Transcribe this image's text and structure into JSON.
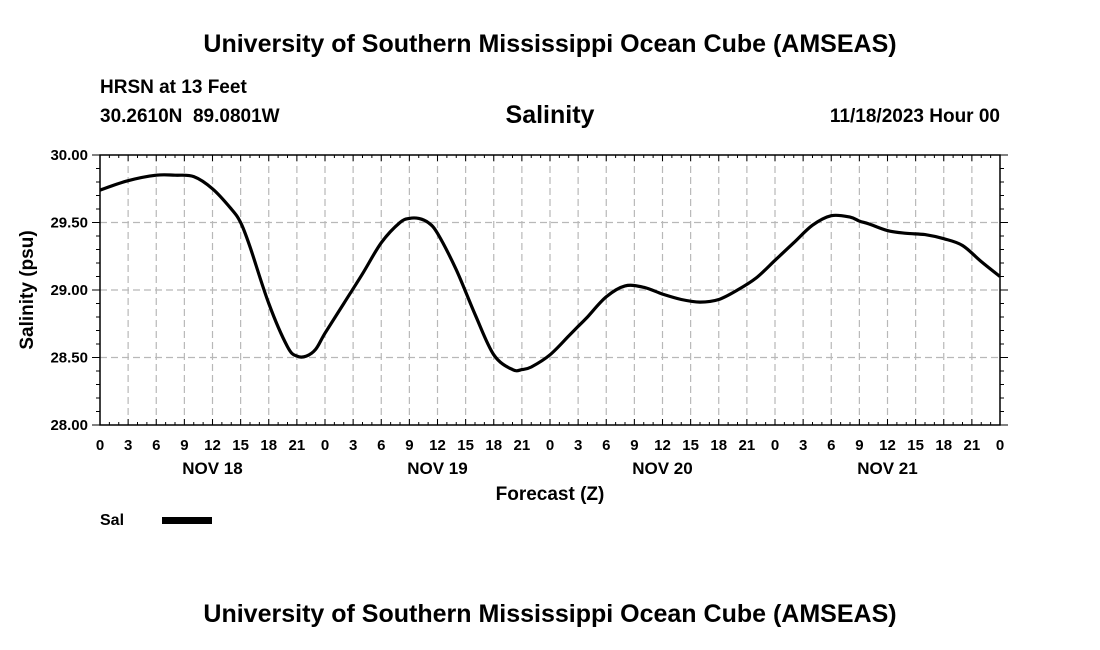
{
  "header": {
    "title_top": "University of Southern Mississippi Ocean Cube (AMSEAS)",
    "station": "HRSN at 13 Feet",
    "coords": "30.2610N  89.0801W",
    "plot_title": "Salinity",
    "run_time": "11/18/2023 Hour 00",
    "title_bottom": "University of Southern Mississippi Ocean Cube (AMSEAS)"
  },
  "chart_data": {
    "type": "line",
    "title": "Salinity",
    "xlabel": "Forecast (Z)",
    "ylabel": "Salinity (psu)",
    "ylim": [
      28.0,
      30.0
    ],
    "xlim": [
      0,
      96
    ],
    "y_ticks": [
      "28.00",
      "28.50",
      "29.00",
      "29.50",
      "30.00"
    ],
    "y_tick_values": [
      28.0,
      28.5,
      29.0,
      29.5,
      30.0
    ],
    "x_tick_hours": [
      0,
      3,
      6,
      9,
      12,
      15,
      18,
      21,
      24,
      27,
      30,
      33,
      36,
      39,
      42,
      45,
      48,
      51,
      54,
      57,
      60,
      63,
      66,
      69,
      72,
      75,
      78,
      81,
      84,
      87,
      90,
      93,
      96
    ],
    "x_tick_labels": [
      "0",
      "3",
      "6",
      "9",
      "12",
      "15",
      "18",
      "21",
      "0",
      "3",
      "6",
      "9",
      "12",
      "15",
      "18",
      "21",
      "0",
      "3",
      "6",
      "9",
      "12",
      "15",
      "18",
      "21",
      "0",
      "3",
      "6",
      "9",
      "12",
      "15",
      "18",
      "21",
      "0"
    ],
    "day_labels": [
      {
        "label": "NOV 18",
        "hour": 12
      },
      {
        "label": "NOV 19",
        "hour": 36
      },
      {
        "label": "NOV 20",
        "hour": 60
      },
      {
        "label": "NOV 21",
        "hour": 84
      }
    ],
    "grid": true,
    "series": [
      {
        "name": "Sal",
        "color": "#000000",
        "x": [
          0,
          3,
          6,
          8,
          10,
          12,
          14,
          15,
          16,
          18,
          20,
          21,
          22,
          23,
          24,
          26,
          28,
          30,
          32,
          33,
          34,
          35,
          36,
          38,
          40,
          42,
          44,
          45,
          46,
          48,
          50,
          51,
          52,
          54,
          56,
          58,
          60,
          62,
          64,
          66,
          68,
          70,
          72,
          74,
          76,
          78,
          80,
          81,
          82,
          84,
          86,
          88,
          90,
          92,
          94,
          96
        ],
        "values": [
          29.74,
          29.81,
          29.85,
          29.85,
          29.84,
          29.75,
          29.6,
          29.5,
          29.32,
          28.9,
          28.58,
          28.51,
          28.51,
          28.56,
          28.68,
          28.9,
          29.12,
          29.35,
          29.5,
          29.53,
          29.53,
          29.5,
          29.42,
          29.15,
          28.82,
          28.52,
          28.41,
          28.41,
          28.43,
          28.52,
          28.66,
          28.73,
          28.8,
          28.95,
          29.03,
          29.02,
          28.97,
          28.93,
          28.91,
          28.93,
          29.0,
          29.09,
          29.22,
          29.35,
          29.48,
          29.55,
          29.54,
          29.51,
          29.49,
          29.44,
          29.42,
          29.41,
          29.38,
          29.33,
          29.21,
          29.1
        ]
      }
    ]
  },
  "legend": {
    "label": "Sal"
  }
}
